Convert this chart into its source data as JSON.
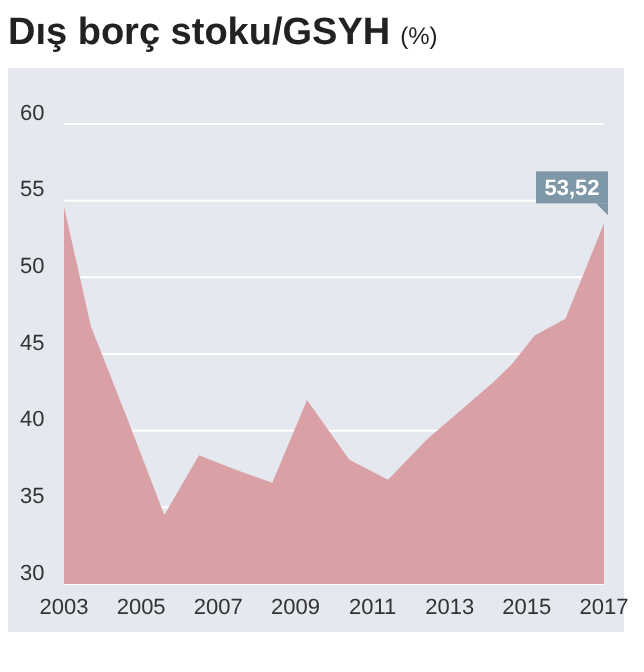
{
  "chart_data": {
    "type": "area",
    "title": "Dış borç stoku/GSYH",
    "subtitle": "(%)",
    "x": [
      2003,
      2003.7,
      2004.7,
      2005.6,
      2006.5,
      2007.4,
      2008.4,
      2009.3,
      2010.4,
      2011.4,
      2012.4,
      2014.1,
      2014.6,
      2015.2,
      2016,
      2017
    ],
    "series": [
      {
        "color": "#d9a1a6",
        "values": [
          54.6,
          46.8,
          40.4,
          34.5,
          38.4,
          37.5,
          36.6,
          42.0,
          38.1,
          36.8,
          39.4,
          43.1,
          44.3,
          46.2,
          47.3,
          53.52
        ]
      }
    ],
    "xlim": [
      2003,
      2017
    ],
    "xticks": [
      2003,
      2005,
      2007,
      2009,
      2011,
      2013,
      2015,
      2017
    ],
    "ylim": [
      30,
      60
    ],
    "yticks": [
      30,
      35,
      40,
      45,
      50,
      55,
      60
    ],
    "grid": "y",
    "annotations": [
      {
        "text": "53,52",
        "x": 2017,
        "y": 53.52
      }
    ]
  }
}
